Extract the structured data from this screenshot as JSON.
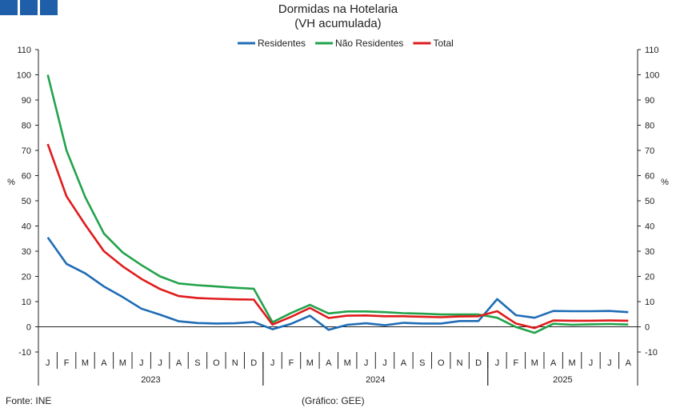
{
  "header": {
    "logo_icon": "logo-blocks-icon",
    "brand_color": "#1f5ea8"
  },
  "footer": {
    "source": "Fonte: INE",
    "credit": "(Gráfico: GEE)"
  },
  "chart_data": {
    "type": "line",
    "title": "Dormidas na Hotelaria",
    "subtitle": "(VH acumulada)",
    "ylabel_left": "%",
    "ylabel_right": "%",
    "ylim": [
      -10,
      110
    ],
    "yticks": [
      -10,
      0,
      10,
      20,
      30,
      40,
      50,
      60,
      70,
      80,
      90,
      100,
      110
    ],
    "grid": false,
    "legend_position": "top-center",
    "categories": [
      "J",
      "F",
      "M",
      "A",
      "M",
      "J",
      "J",
      "A",
      "S",
      "O",
      "N",
      "D",
      "J",
      "F",
      "M",
      "A",
      "M",
      "J",
      "J",
      "A",
      "S",
      "O",
      "N",
      "D",
      "J",
      "F",
      "M",
      "A",
      "M",
      "J",
      "J",
      "A"
    ],
    "years": [
      {
        "label": "2023",
        "start": 0,
        "end": 11
      },
      {
        "label": "2024",
        "start": 12,
        "end": 23
      },
      {
        "label": "2025",
        "start": 24,
        "end": 31
      }
    ],
    "series": [
      {
        "name": "Residentes",
        "color": "#1f6cb5",
        "values": [
          35.5,
          25,
          21.2,
          16,
          11.8,
          7.2,
          4.8,
          2.2,
          1.5,
          1.3,
          1.4,
          1.9,
          -1,
          1.2,
          4.4,
          -1.2,
          0.8,
          1.4,
          0.6,
          1.6,
          1.3,
          1.3,
          2.3,
          2.3,
          11,
          4.6,
          3.6,
          6.3,
          6.2,
          6.2,
          6.3,
          5.8
        ]
      },
      {
        "name": "Não Residentes",
        "color": "#22a24a",
        "values": [
          100,
          70,
          51.5,
          37,
          29.5,
          24.5,
          20,
          17.2,
          16.5,
          16,
          15.5,
          15.1,
          1.8,
          5.5,
          8.7,
          5.3,
          6.1,
          6.1,
          5.8,
          5.4,
          5.2,
          4.9,
          4.9,
          4.9,
          3.6,
          -0.1,
          -2.4,
          1.2,
          0.8,
          1,
          1.1,
          0.9
        ]
      },
      {
        "name": "Total",
        "color": "#e01b1b",
        "values": [
          72.5,
          51.8,
          40.5,
          30,
          24,
          19,
          15,
          12.2,
          11.4,
          11.1,
          10.9,
          10.8,
          0.9,
          4,
          7.5,
          3.5,
          4.4,
          4.5,
          4.2,
          4.2,
          4,
          3.8,
          4.1,
          4.2,
          6.2,
          1.3,
          -0.5,
          2.5,
          2.4,
          2.4,
          2.5,
          2.4
        ]
      }
    ]
  }
}
